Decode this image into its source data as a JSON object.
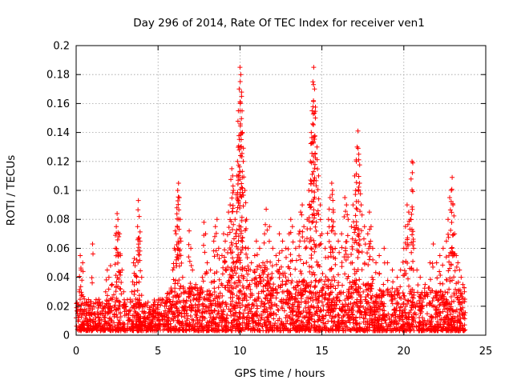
{
  "chart_data": {
    "type": "scatter",
    "title": "Day 296 of 2014, Rate Of TEC Index for receiver ven1",
    "xlabel": "GPS time / hours",
    "ylabel": "ROTI / TECUs",
    "xlim": [
      0,
      25
    ],
    "ylim": [
      0,
      0.2
    ],
    "grid": true,
    "marker": "+",
    "series_color": "#ff0000",
    "x_ticks": [
      0,
      5,
      10,
      15,
      20,
      25
    ],
    "x_tick_labels": [
      "0",
      "5",
      "10",
      "15",
      "20",
      "25"
    ],
    "y_ticks": [
      0,
      0.02,
      0.04,
      0.06,
      0.08,
      0.1,
      0.12,
      0.14,
      0.16,
      0.18,
      0.2
    ],
    "y_tick_labels": [
      "0",
      "0.02",
      "0.04",
      "0.06",
      "0.08",
      "0.1",
      "0.12",
      "0.14",
      "0.16",
      "0.18",
      "0.2"
    ],
    "points": [
      [
        0.0,
        0.012
      ],
      [
        0.1,
        0.02
      ],
      [
        0.2,
        0.03
      ],
      [
        0.25,
        0.055
      ],
      [
        0.3,
        0.045
      ],
      [
        0.35,
        0.038
      ],
      [
        0.4,
        0.05
      ],
      [
        0.5,
        0.025
      ],
      [
        0.6,
        0.015
      ],
      [
        0.7,
        0.01
      ],
      [
        0.8,
        0.02
      ],
      [
        1.0,
        0.063
      ],
      [
        1.0,
        0.018
      ],
      [
        1.2,
        0.012
      ],
      [
        1.5,
        0.02
      ],
      [
        1.8,
        0.03
      ],
      [
        1.9,
        0.045
      ],
      [
        2.0,
        0.04
      ],
      [
        2.1,
        0.048
      ],
      [
        2.2,
        0.035
      ],
      [
        2.3,
        0.028
      ],
      [
        2.4,
        0.06
      ],
      [
        2.45,
        0.075
      ],
      [
        2.5,
        0.084
      ],
      [
        2.55,
        0.08
      ],
      [
        2.6,
        0.068
      ],
      [
        2.65,
        0.07
      ],
      [
        2.7,
        0.055
      ],
      [
        2.8,
        0.045
      ],
      [
        2.9,
        0.03
      ],
      [
        3.0,
        0.02
      ],
      [
        3.2,
        0.015
      ],
      [
        3.4,
        0.03
      ],
      [
        3.5,
        0.05
      ],
      [
        3.55,
        0.053
      ],
      [
        3.6,
        0.048
      ],
      [
        3.7,
        0.052
      ],
      [
        3.75,
        0.075
      ],
      [
        3.8,
        0.093
      ],
      [
        3.85,
        0.082
      ],
      [
        3.9,
        0.065
      ],
      [
        4.0,
        0.04
      ],
      [
        4.2,
        0.02
      ],
      [
        4.5,
        0.015
      ],
      [
        4.8,
        0.012
      ],
      [
        5.0,
        0.01
      ],
      [
        5.2,
        0.015
      ],
      [
        5.4,
        0.02
      ],
      [
        5.6,
        0.025
      ],
      [
        5.8,
        0.03
      ],
      [
        5.9,
        0.045
      ],
      [
        6.0,
        0.06
      ],
      [
        6.05,
        0.072
      ],
      [
        6.1,
        0.07
      ],
      [
        6.15,
        0.088
      ],
      [
        6.2,
        0.1
      ],
      [
        6.25,
        0.105
      ],
      [
        6.3,
        0.095
      ],
      [
        6.35,
        0.08
      ],
      [
        6.4,
        0.065
      ],
      [
        6.5,
        0.04
      ],
      [
        6.7,
        0.03
      ],
      [
        6.9,
        0.072
      ],
      [
        7.0,
        0.06
      ],
      [
        7.1,
        0.045
      ],
      [
        7.3,
        0.035
      ],
      [
        7.5,
        0.028
      ],
      [
        7.7,
        0.04
      ],
      [
        7.8,
        0.078
      ],
      [
        7.9,
        0.07
      ],
      [
        8.0,
        0.05
      ],
      [
        8.2,
        0.045
      ],
      [
        8.4,
        0.065
      ],
      [
        8.5,
        0.075
      ],
      [
        8.6,
        0.08
      ],
      [
        8.7,
        0.06
      ],
      [
        8.9,
        0.055
      ],
      [
        9.0,
        0.07
      ],
      [
        9.1,
        0.065
      ],
      [
        9.3,
        0.085
      ],
      [
        9.4,
        0.09
      ],
      [
        9.5,
        0.115
      ],
      [
        9.55,
        0.11
      ],
      [
        9.6,
        0.1
      ],
      [
        9.7,
        0.08
      ],
      [
        9.8,
        0.11
      ],
      [
        9.85,
        0.12
      ],
      [
        9.9,
        0.155
      ],
      [
        9.95,
        0.17
      ],
      [
        10.0,
        0.185
      ],
      [
        10.05,
        0.18
      ],
      [
        10.1,
        0.165
      ],
      [
        10.15,
        0.14
      ],
      [
        10.2,
        0.12
      ],
      [
        10.3,
        0.1
      ],
      [
        10.4,
        0.08
      ],
      [
        10.5,
        0.06
      ],
      [
        10.7,
        0.05
      ],
      [
        10.9,
        0.055
      ],
      [
        11.0,
        0.065
      ],
      [
        11.2,
        0.06
      ],
      [
        11.4,
        0.05
      ],
      [
        11.5,
        0.07
      ],
      [
        11.6,
        0.087
      ],
      [
        11.8,
        0.075
      ],
      [
        12.0,
        0.06
      ],
      [
        12.2,
        0.055
      ],
      [
        12.4,
        0.07
      ],
      [
        12.6,
        0.065
      ],
      [
        12.8,
        0.06
      ],
      [
        13.0,
        0.07
      ],
      [
        13.1,
        0.08
      ],
      [
        13.2,
        0.075
      ],
      [
        13.4,
        0.06
      ],
      [
        13.6,
        0.07
      ],
      [
        13.7,
        0.085
      ],
      [
        13.8,
        0.09
      ],
      [
        13.9,
        0.075
      ],
      [
        14.0,
        0.06
      ],
      [
        14.1,
        0.08
      ],
      [
        14.2,
        0.1
      ],
      [
        14.3,
        0.12
      ],
      [
        14.35,
        0.14
      ],
      [
        14.4,
        0.155
      ],
      [
        14.45,
        0.175
      ],
      [
        14.5,
        0.185
      ],
      [
        14.55,
        0.17
      ],
      [
        14.6,
        0.15
      ],
      [
        14.7,
        0.13
      ],
      [
        14.8,
        0.11
      ],
      [
        14.9,
        0.09
      ],
      [
        15.0,
        0.07
      ],
      [
        15.2,
        0.06
      ],
      [
        15.4,
        0.08
      ],
      [
        15.5,
        0.095
      ],
      [
        15.6,
        0.105
      ],
      [
        15.65,
        0.1
      ],
      [
        15.7,
        0.085
      ],
      [
        15.8,
        0.07
      ],
      [
        16.0,
        0.065
      ],
      [
        16.2,
        0.07
      ],
      [
        16.4,
        0.095
      ],
      [
        16.5,
        0.09
      ],
      [
        16.6,
        0.08
      ],
      [
        16.8,
        0.075
      ],
      [
        16.9,
        0.09
      ],
      [
        17.0,
        0.11
      ],
      [
        17.1,
        0.12
      ],
      [
        17.15,
        0.13
      ],
      [
        17.2,
        0.141
      ],
      [
        17.25,
        0.125
      ],
      [
        17.3,
        0.105
      ],
      [
        17.4,
        0.09
      ],
      [
        17.6,
        0.075
      ],
      [
        17.8,
        0.07
      ],
      [
        17.9,
        0.085
      ],
      [
        18.0,
        0.075
      ],
      [
        18.1,
        0.06
      ],
      [
        18.3,
        0.05
      ],
      [
        18.5,
        0.055
      ],
      [
        18.8,
        0.06
      ],
      [
        19.0,
        0.05
      ],
      [
        19.3,
        0.045
      ],
      [
        19.6,
        0.04
      ],
      [
        19.8,
        0.045
      ],
      [
        20.0,
        0.06
      ],
      [
        20.1,
        0.075
      ],
      [
        20.2,
        0.09
      ],
      [
        20.3,
        0.085
      ],
      [
        20.4,
        0.08
      ],
      [
        20.5,
        0.12
      ],
      [
        20.55,
        0.119
      ],
      [
        20.6,
        0.06
      ],
      [
        20.8,
        0.045
      ],
      [
        21.0,
        0.04
      ],
      [
        21.3,
        0.035
      ],
      [
        21.6,
        0.05
      ],
      [
        21.8,
        0.063
      ],
      [
        22.0,
        0.05
      ],
      [
        22.2,
        0.055
      ],
      [
        22.4,
        0.06
      ],
      [
        22.6,
        0.065
      ],
      [
        22.7,
        0.08
      ],
      [
        22.8,
        0.095
      ],
      [
        22.9,
        0.1
      ],
      [
        22.95,
        0.109
      ],
      [
        23.0,
        0.09
      ],
      [
        23.1,
        0.07
      ],
      [
        23.2,
        0.055
      ],
      [
        23.3,
        0.05
      ],
      [
        23.4,
        0.045
      ],
      [
        23.5,
        0.04
      ],
      [
        23.6,
        0.035
      ],
      [
        23.7,
        0.03
      ]
    ]
  }
}
